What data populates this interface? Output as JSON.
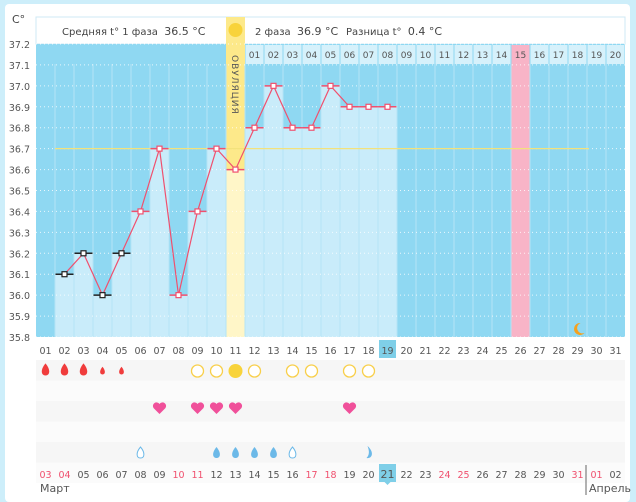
{
  "header": {
    "axis_unit": "C°",
    "phase1_label": "Средняя t° 1 фаза",
    "phase1_value": "36.5 °C",
    "phase2_label": "2 фаза",
    "phase2_value": "36.9 °C",
    "diff_label": "Разница t°",
    "diff_value": "0.4 °C",
    "ovulation_label": "ОВУЛЯЦИЯ"
  },
  "colors": {
    "plot_bg": "#8fd8f2",
    "bar": "#c9ecfa",
    "ovulation": "#fde98a",
    "ovulation_light": "#fff6c8",
    "expected_period": "#f8b4c7",
    "line": "#f0506e",
    "cover_line": "#f3e27c",
    "today": "#7fcfe8",
    "weekend": "#f0506e"
  },
  "chart_data": {
    "type": "line",
    "ylabel": "C°",
    "ylim": [
      35.8,
      37.2
    ],
    "y_ticks": [
      "37.2",
      "37.1",
      "37.0",
      "36.9",
      "36.8",
      "36.7",
      "36.6",
      "36.5",
      "36.4",
      "36.3",
      "36.2",
      "36.1",
      "36.0",
      "35.9",
      "35.8"
    ],
    "cycle_days": [
      "01",
      "02",
      "03",
      "04",
      "05",
      "06",
      "07",
      "08",
      "09",
      "10",
      "11",
      "12",
      "13",
      "14",
      "15",
      "16",
      "17",
      "18",
      "19",
      "20",
      "21",
      "22",
      "23",
      "24",
      "25",
      "26",
      "27",
      "28",
      "29",
      "30",
      "31"
    ],
    "temps": [
      null,
      36.1,
      36.2,
      36.0,
      36.2,
      36.4,
      36.7,
      36.0,
      36.4,
      36.7,
      36.6,
      36.8,
      37.0,
      36.8,
      36.8,
      37.0,
      36.9,
      36.9,
      36.9,
      null,
      null,
      null,
      null,
      null,
      null,
      null,
      null,
      null,
      null,
      null,
      null
    ],
    "excluded_days": [
      2,
      3,
      4,
      5
    ],
    "cover_line": 36.7,
    "ovulation_day": 11,
    "expected_period_day": 26,
    "moon_day": 29,
    "current_day": "19",
    "luteal_day_labels": [
      "01",
      "02",
      "03",
      "04",
      "05",
      "06",
      "07",
      "08",
      "09",
      "10",
      "11",
      "12",
      "13",
      "14",
      "15",
      "16",
      "17",
      "18",
      "19",
      "20"
    ]
  },
  "symbols": {
    "period_large": [
      1,
      2,
      3
    ],
    "period_small": [
      4,
      5
    ],
    "ovulation_test_negative": [
      9,
      10,
      12,
      14,
      15,
      17,
      18
    ],
    "ovulation_test_positive": [
      11
    ],
    "intercourse": [
      7,
      9,
      10,
      11,
      17
    ],
    "mucus_outline": [
      6,
      14
    ],
    "mucus_filled": [
      10,
      11,
      12,
      13
    ],
    "mucus_partial": [
      18
    ]
  },
  "calendar": {
    "dates": [
      "03",
      "04",
      "05",
      "06",
      "07",
      "08",
      "09",
      "10",
      "11",
      "12",
      "13",
      "14",
      "15",
      "16",
      "17",
      "18",
      "19",
      "20",
      "21",
      "22",
      "23",
      "24",
      "25",
      "26",
      "27",
      "28",
      "29",
      "30",
      "31",
      "01",
      "02"
    ],
    "weekends": [
      "03",
      "04",
      "10",
      "11",
      "17",
      "18",
      "24",
      "25",
      "31",
      "01"
    ],
    "today": "21",
    "month1": "Март",
    "month2": "Апрель"
  }
}
